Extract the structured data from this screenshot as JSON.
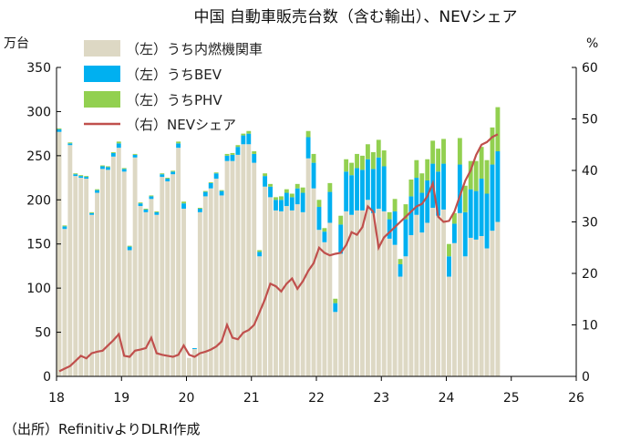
{
  "chart_data": {
    "type": "bar",
    "title": "中国 自動車販売台数（含む輸出）、NEVシェア",
    "left_unit": "万台",
    "right_unit": "%",
    "source": "（出所）RefinitivよりDLRI作成",
    "ylim_left": [
      0,
      350
    ],
    "ylim_right": [
      0,
      60
    ],
    "left_ticks": [
      "0",
      "50",
      "100",
      "150",
      "200",
      "250",
      "300",
      "350"
    ],
    "right_ticks": [
      "0",
      "10",
      "20",
      "30",
      "40",
      "50",
      "60"
    ],
    "x_ticks": [
      "18",
      "19",
      "20",
      "21",
      "22",
      "23",
      "24",
      "25",
      "26"
    ],
    "xlim": [
      2018.0,
      2026.0
    ],
    "legend": {
      "ice": "（左）うち内燃機関車",
      "bev": "（左）うちBEV",
      "phv": "（左）うちPHV",
      "nev": "（右）NEVシェア"
    },
    "colors": {
      "ice": "#ddd8c4",
      "bev": "#00b0f0",
      "phv": "#92d050",
      "nev": "#c0504d",
      "axis": "#000000"
    },
    "months": 82,
    "start_year": 2018,
    "total": [
      281,
      171,
      265,
      230,
      228,
      227,
      186,
      212,
      239,
      238,
      254,
      266,
      236,
      148,
      252,
      197,
      190,
      205,
      187,
      230,
      225,
      233,
      266,
      198,
      21,
      32,
      191,
      210,
      220,
      231,
      211,
      252,
      253,
      262,
      275,
      278,
      255,
      143,
      230,
      218,
      203,
      204,
      212,
      207,
      218,
      214,
      278,
      252,
      200,
      168,
      219,
      88,
      182,
      246,
      242,
      252,
      250,
      263,
      254,
      268,
      256,
      186,
      201,
      133,
      195,
      223,
      245,
      230,
      246,
      267,
      258,
      269,
      150,
      185,
      270,
      216,
      244,
      244,
      260,
      245,
      282,
      305
    ],
    "bev": [
      3,
      3,
      2,
      2,
      2,
      2,
      2,
      3,
      3,
      3,
      4,
      5,
      3,
      4,
      3,
      3,
      3,
      3,
      3,
      3,
      3,
      3,
      5,
      6,
      0,
      1,
      4,
      5,
      6,
      6,
      5,
      6,
      7,
      9,
      10,
      12,
      10,
      5,
      12,
      12,
      12,
      13,
      15,
      15,
      18,
      22,
      24,
      29,
      26,
      12,
      35,
      10,
      33,
      45,
      45,
      48,
      46,
      46,
      50,
      58,
      51,
      22,
      38,
      14,
      42,
      44,
      42,
      45,
      48,
      50,
      50,
      52,
      23,
      22,
      55,
      50,
      55,
      55,
      65,
      62,
      75,
      80
    ],
    "phv": [
      1,
      1,
      1,
      1,
      1,
      1,
      1,
      1,
      1,
      1,
      1,
      2,
      1,
      1,
      1,
      1,
      1,
      1,
      1,
      1,
      1,
      1,
      2,
      2,
      0,
      0,
      1,
      1,
      1,
      1,
      1,
      2,
      2,
      2,
      2,
      3,
      3,
      2,
      3,
      3,
      3,
      4,
      4,
      4,
      5,
      6,
      7,
      10,
      8,
      4,
      10,
      5,
      10,
      14,
      14,
      16,
      16,
      17,
      19,
      20,
      18,
      8,
      14,
      6,
      17,
      19,
      20,
      22,
      24,
      26,
      26,
      28,
      14,
      12,
      30,
      30,
      32,
      34,
      36,
      38,
      42,
      50
    ],
    "nev_share": [
      1,
      1.5,
      2,
      3,
      4,
      3.5,
      4.5,
      4.8,
      5,
      6,
      7,
      8.2,
      4,
      3.8,
      5,
      5.2,
      5.5,
      7.5,
      4.5,
      4.2,
      4,
      3.8,
      4.2,
      6,
      4.2,
      3.8,
      4.5,
      4.8,
      5.2,
      5.8,
      6.8,
      10,
      7.5,
      7.2,
      8.5,
      9,
      10,
      12.5,
      15,
      18,
      17.5,
      16.5,
      18,
      19,
      17,
      18.5,
      20.5,
      22,
      25,
      24,
      23.5,
      23.8,
      24,
      25.5,
      28,
      27.5,
      29,
      33,
      32,
      25,
      27,
      28,
      29,
      30,
      31,
      32,
      33,
      33.5,
      35,
      37.5,
      31,
      30,
      30.2,
      32,
      35,
      38,
      40,
      43,
      45,
      45.5,
      46.5,
      47
    ]
  }
}
